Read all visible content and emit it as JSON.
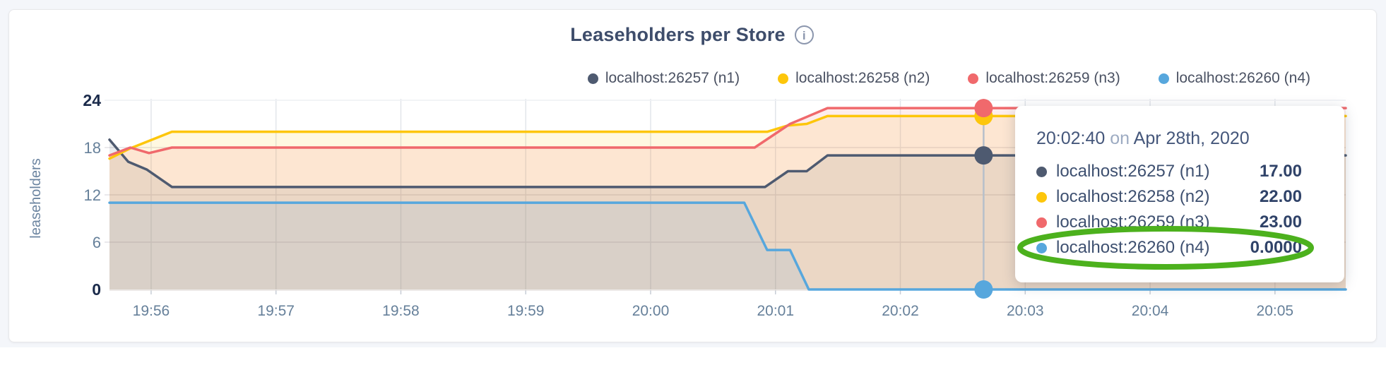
{
  "header": {
    "title": "Leaseholders per Store",
    "info_icon_glyph": "i"
  },
  "legend": {
    "items": [
      {
        "label": "localhost:26257 (n1)",
        "color": "#4e5a70"
      },
      {
        "label": "localhost:26258 (n2)",
        "color": "#fdc60b"
      },
      {
        "label": "localhost:26259 (n3)",
        "color": "#f0696c"
      },
      {
        "label": "localhost:26260 (n4)",
        "color": "#57a7dd"
      }
    ]
  },
  "chart_data": {
    "type": "area",
    "title": "Leaseholders per Store",
    "ylabel": "leaseholders",
    "xlabel": "",
    "ylim": [
      0,
      24
    ],
    "grid": true,
    "legend_position": "top-right",
    "x_unit": "seconds since 19:55:40 on Apr 28th, 2020",
    "x_range": [
      0,
      594
    ],
    "x_ticks": [
      {
        "t": 20,
        "label": "19:56"
      },
      {
        "t": 80,
        "label": "19:57"
      },
      {
        "t": 140,
        "label": "19:58"
      },
      {
        "t": 200,
        "label": "19:59"
      },
      {
        "t": 260,
        "label": "20:00"
      },
      {
        "t": 320,
        "label": "20:01"
      },
      {
        "t": 380,
        "label": "20:02"
      },
      {
        "t": 440,
        "label": "20:03"
      },
      {
        "t": 500,
        "label": "20:04"
      },
      {
        "t": 560,
        "label": "20:05"
      }
    ],
    "y_ticks": [
      {
        "value": 0,
        "label": "0",
        "bold": true
      },
      {
        "value": 6,
        "label": "6",
        "bold": false
      },
      {
        "value": 12,
        "label": "12",
        "bold": false
      },
      {
        "value": 18,
        "label": "18",
        "bold": false
      },
      {
        "value": 24,
        "label": "24",
        "bold": true
      }
    ],
    "series": [
      {
        "name": "localhost:26257 (n1)",
        "color": "#4e5a70",
        "points": [
          [
            0,
            19
          ],
          [
            9,
            16.2
          ],
          [
            18,
            15.2
          ],
          [
            30,
            13
          ],
          [
            315,
            13
          ],
          [
            326,
            15
          ],
          [
            335,
            15
          ],
          [
            345,
            17
          ],
          [
            594,
            17
          ]
        ]
      },
      {
        "name": "localhost:26258 (n2)",
        "color": "#fdc60b",
        "points": [
          [
            0,
            16.6
          ],
          [
            10,
            17.9
          ],
          [
            30,
            20
          ],
          [
            316,
            20
          ],
          [
            326,
            20.8
          ],
          [
            335,
            21
          ],
          [
            345,
            22
          ],
          [
            594,
            22
          ]
        ]
      },
      {
        "name": "localhost:26259 (n3)",
        "color": "#f0696c",
        "points": [
          [
            0,
            17
          ],
          [
            10,
            18
          ],
          [
            19,
            17.3
          ],
          [
            30,
            18
          ],
          [
            310,
            18
          ],
          [
            327,
            21
          ],
          [
            345,
            23
          ],
          [
            594,
            23
          ]
        ]
      },
      {
        "name": "localhost:26260 (n4)",
        "color": "#57a7dd",
        "points": [
          [
            0,
            11
          ],
          [
            305,
            11
          ],
          [
            316,
            5
          ],
          [
            327,
            5
          ],
          [
            336,
            0
          ],
          [
            594,
            0
          ]
        ]
      }
    ],
    "hover": {
      "t": 420,
      "time_label": "20:02:40"
    }
  },
  "tooltip": {
    "time": "20:02:40",
    "connector": "on",
    "date": "Apr 28th, 2020",
    "rows": [
      {
        "label": "localhost:26257 (n1)",
        "value": "17.00",
        "color": "#4e5a70",
        "highlighted": false
      },
      {
        "label": "localhost:26258 (n2)",
        "value": "22.00",
        "color": "#fdc60b",
        "highlighted": false
      },
      {
        "label": "localhost:26259 (n3)",
        "value": "23.00",
        "color": "#f0696c",
        "highlighted": false
      },
      {
        "label": "localhost:26260 (n4)",
        "value": "0.0000",
        "color": "#57a7dd",
        "highlighted": true
      }
    ],
    "highlight_color": "#4cb11d"
  }
}
